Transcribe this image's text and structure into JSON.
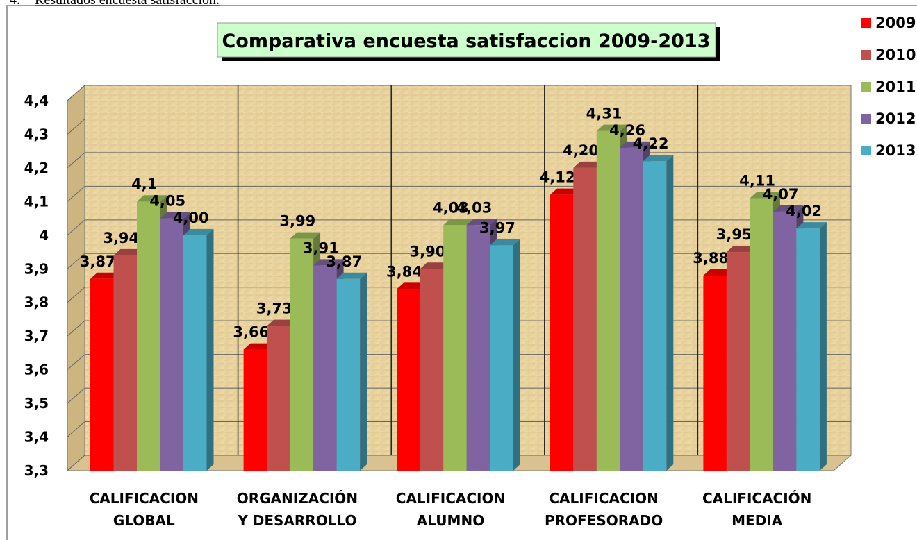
{
  "header": {
    "number": "4.",
    "text": "Resultados encuesta satisfacción."
  },
  "chart_data": {
    "type": "bar3d",
    "title": "Comparativa encuesta satisfaccion 2009-2013",
    "categories": [
      [
        "CALIFICACION",
        "GLOBAL"
      ],
      [
        "ORGANIZACIÓN",
        "Y DESARROLLO"
      ],
      [
        "CALIFICACION",
        "ALUMNO"
      ],
      [
        "CALIFICACION",
        "PROFESORADO"
      ],
      [
        "CALIFICACIÓN",
        "MEDIA"
      ]
    ],
    "series": [
      {
        "name": "2009",
        "color": "#ff0000",
        "values": [
          3.87,
          3.66,
          3.84,
          4.12,
          3.88
        ],
        "value_labels": [
          "3,87",
          "3,66",
          "3,84",
          "4,12",
          "3,88"
        ]
      },
      {
        "name": "2010",
        "color": "#c0504d",
        "values": [
          3.94,
          3.73,
          3.9,
          4.2,
          3.95
        ],
        "value_labels": [
          "3,94",
          "3,73",
          "3,90",
          "4,20",
          "3,95"
        ]
      },
      {
        "name": "2011",
        "color": "#9bbb59",
        "values": [
          4.1,
          3.99,
          4.03,
          4.31,
          4.11
        ],
        "value_labels": [
          "4,1",
          "3,99",
          "4,03",
          "4,31",
          "4,11"
        ]
      },
      {
        "name": "2012",
        "color": "#8064a2",
        "values": [
          4.05,
          3.91,
          4.03,
          4.26,
          4.07
        ],
        "value_labels": [
          "4,05",
          "3,91",
          "4,03",
          "4,26",
          "4,07"
        ]
      },
      {
        "name": "2013",
        "color": "#4bacc6",
        "values": [
          4.0,
          3.87,
          3.97,
          4.22,
          4.02
        ],
        "value_labels": [
          "4,00",
          "3,87",
          "3,97",
          "4,22",
          "4,02"
        ]
      }
    ],
    "ylim": [
      3.3,
      4.4
    ],
    "yticks": [
      {
        "value": 3.3,
        "label": "3,3"
      },
      {
        "value": 3.4,
        "label": "3,4"
      },
      {
        "value": 3.5,
        "label": "3,5"
      },
      {
        "value": 3.6,
        "label": "3,6"
      },
      {
        "value": 3.7,
        "label": "3,7"
      },
      {
        "value": 3.8,
        "label": "3,8"
      },
      {
        "value": 3.9,
        "label": "3,9"
      },
      4,
      {
        "value": 4.1,
        "label": "4,1"
      },
      {
        "value": 4.2,
        "label": "4,2"
      },
      {
        "value": 4.3,
        "label": "4,3"
      },
      {
        "value": 4.4,
        "label": "4,4"
      }
    ],
    "grid": true,
    "legend": "right"
  }
}
